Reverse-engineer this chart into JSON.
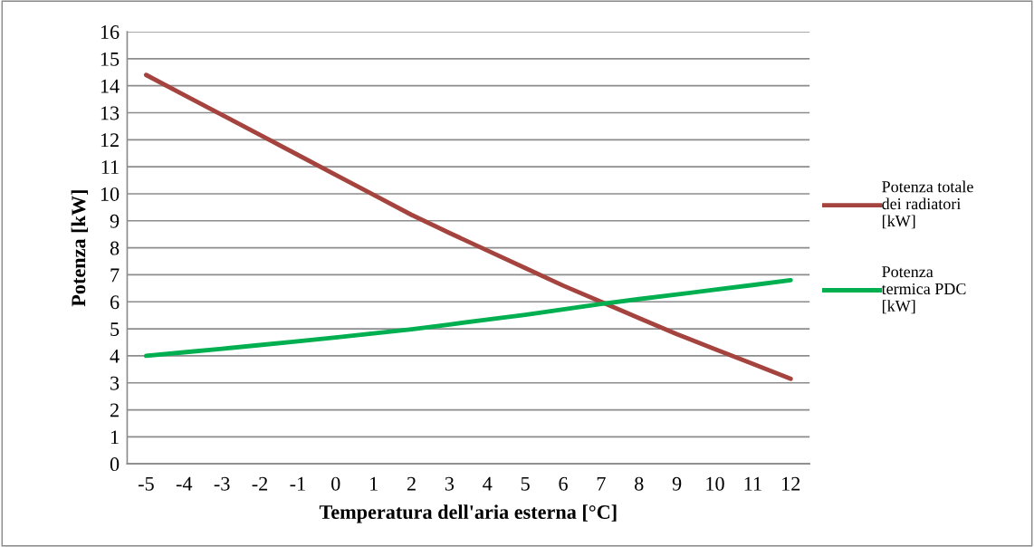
{
  "chart_data": {
    "type": "line",
    "xlabel": "Temperatura dell'aria esterna [°C]",
    "ylabel": "Potenza [kW]",
    "categories": [
      "-5",
      "-4",
      "-3",
      "-2",
      "-1",
      "0",
      "1",
      "2",
      "3",
      "4",
      "5",
      "6",
      "7",
      "8",
      "9",
      "10",
      "11",
      "12"
    ],
    "series": [
      {
        "name": "Potenza totale dei radiatori [kW]",
        "color": "#a5443f",
        "values": [
          14.4,
          13.66,
          12.92,
          12.18,
          11.44,
          10.7,
          9.96,
          9.22,
          8.55,
          7.9,
          7.25,
          6.6,
          6.0,
          5.4,
          4.8,
          4.25,
          3.7,
          3.15
        ]
      },
      {
        "name": "Potenza termica PDC [kW]",
        "color": "#00b050",
        "values": [
          4.0,
          4.13,
          4.26,
          4.4,
          4.54,
          4.68,
          4.83,
          4.98,
          5.16,
          5.34,
          5.52,
          5.72,
          5.92,
          6.1,
          6.27,
          6.45,
          6.62,
          6.8
        ]
      }
    ],
    "ylim": [
      0,
      16
    ],
    "yticks": [
      0,
      1,
      2,
      3,
      4,
      5,
      6,
      7,
      8,
      9,
      10,
      11,
      12,
      13,
      14,
      15,
      16
    ],
    "grid": "y",
    "legend": "right",
    "marker": "none",
    "line_style": "solid"
  }
}
